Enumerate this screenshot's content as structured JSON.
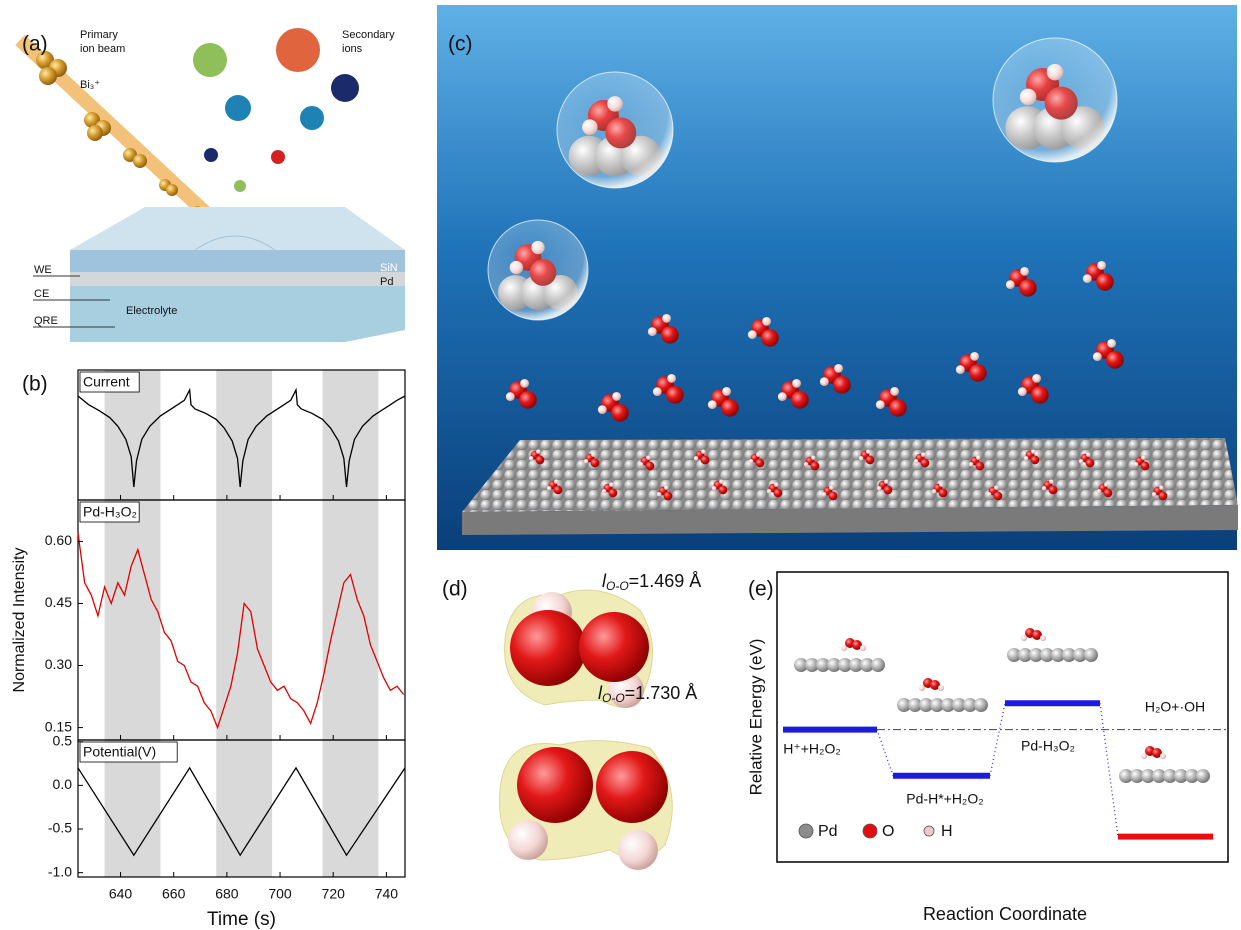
{
  "figure": {
    "a": {
      "label": "(a)",
      "primary": [
        "Primary",
        "ion beam"
      ],
      "bi": "Bi₃⁺",
      "secondary": [
        "Secondary",
        "ions"
      ],
      "we": "WE",
      "ce": "CE",
      "qre": "QRE",
      "electrolyte": "Electrolyte",
      "sin": "SiN",
      "pd": "Pd"
    },
    "b": {
      "label": "(b)"
    },
    "c": {
      "label": "(c)"
    },
    "d": {
      "label": "(d)",
      "structures": [
        {
          "symbol": "l",
          "subscript": "O-O",
          "length": "=1.469 Å"
        },
        {
          "symbol": "l",
          "subscript": "O-O",
          "length": "=1.730 Å"
        }
      ]
    },
    "e": {
      "label": "(e)"
    }
  },
  "chart_data": [
    {
      "type": "line",
      "xlabel": "Time (s)",
      "ylabel": "Normalized Intensity",
      "xlim": [
        624,
        747
      ],
      "xticks": [
        640,
        660,
        680,
        700,
        720,
        740
      ],
      "highlight_spans": [
        [
          634,
          655
        ],
        [
          676,
          697
        ],
        [
          716,
          737
        ]
      ],
      "highlight_color": "#d9d9d9",
      "subplots": [
        {
          "label": "Current",
          "color": "#000000",
          "ylim": [
            -1.15,
            0.35
          ],
          "x": [
            624,
            628,
            632,
            636,
            639,
            642,
            644,
            645,
            646,
            648,
            651,
            655,
            660,
            664,
            666,
            666.5,
            668,
            672,
            676,
            679,
            682,
            684,
            685,
            686,
            688,
            691,
            695,
            700,
            704,
            706,
            706.5,
            708,
            712,
            716,
            719,
            722,
            724,
            725,
            726,
            728,
            731,
            735,
            740,
            744,
            747
          ],
          "values": [
            0.05,
            -0.05,
            -0.12,
            -0.2,
            -0.3,
            -0.45,
            -0.65,
            -1.0,
            -0.7,
            -0.45,
            -0.3,
            -0.18,
            -0.08,
            0.0,
            0.12,
            -0.05,
            -0.1,
            -0.15,
            -0.22,
            -0.32,
            -0.47,
            -0.67,
            -1.0,
            -0.7,
            -0.45,
            -0.3,
            -0.18,
            -0.08,
            0.0,
            0.12,
            -0.05,
            -0.1,
            -0.15,
            -0.22,
            -0.32,
            -0.47,
            -0.67,
            -1.0,
            -0.7,
            -0.45,
            -0.3,
            -0.18,
            -0.08,
            0.0,
            0.05
          ]
        },
        {
          "label": "Pd-H₃O₂",
          "color": "#e00000",
          "ylim": [
            0.12,
            0.7
          ],
          "yticks": [
            0.15,
            {
              "value": 0.3,
              "label": "0.30"
            },
            0.45,
            {
              "value": 0.6,
              "label": "0.60"
            }
          ],
          "x": [
            624,
            626.5,
            629,
            631.5,
            634,
            636.5,
            639,
            641.5,
            644,
            646.5,
            649,
            651.5,
            654,
            656.5,
            659,
            661.5,
            664,
            666.5,
            669,
            671.5,
            674,
            676.5,
            679,
            681.5,
            684,
            686.5,
            689,
            691.5,
            694,
            696.5,
            699,
            701.5,
            704,
            706.5,
            709,
            711.5,
            714,
            716.5,
            719,
            721.5,
            724,
            726.5,
            729,
            731.5,
            734,
            736.5,
            739,
            741.5,
            744,
            746.5
          ],
          "values": [
            0.62,
            0.5,
            0.47,
            0.42,
            0.49,
            0.45,
            0.5,
            0.47,
            0.54,
            0.58,
            0.52,
            0.46,
            0.43,
            0.38,
            0.36,
            0.31,
            0.3,
            0.26,
            0.25,
            0.21,
            0.19,
            0.15,
            0.2,
            0.25,
            0.33,
            0.45,
            0.43,
            0.34,
            0.3,
            0.26,
            0.24,
            0.25,
            0.22,
            0.21,
            0.19,
            0.16,
            0.21,
            0.28,
            0.36,
            0.43,
            0.5,
            0.52,
            0.46,
            0.42,
            0.35,
            0.31,
            0.27,
            0.24,
            0.25,
            0.23
          ]
        },
        {
          "label": "Potential(V)",
          "color": "#000000",
          "ylim": [
            -1.05,
            0.52
          ],
          "yticks": [
            {
              "value": -1,
              "label": "-1.0"
            },
            -0.5,
            {
              "value": 0,
              "label": "0.0"
            },
            0.5
          ],
          "x": [
            624,
            645,
            666,
            685,
            706,
            725,
            747
          ],
          "values": [
            0.2,
            -0.8,
            0.2,
            -0.8,
            0.2,
            -0.8,
            0.2
          ]
        }
      ]
    },
    {
      "type": "energy-levels",
      "ylabel": "Relative Energy (eV)",
      "xlabel": "Reaction Coordinate",
      "ylim": [
        -1.15,
        1.37
      ],
      "categories": [
        "H⁺+H₂O₂",
        "Pd-H*+H₂O₂",
        "Pd-H₃O₂",
        "H₂O+·OH"
      ],
      "values": [
        0,
        -0.4,
        0.23,
        -0.93
      ],
      "colors": [
        "#1c1ce0",
        "#1c1ce0",
        "#1c1ce0",
        "#e81010"
      ],
      "legend": [
        "Pd",
        "O",
        "H"
      ],
      "legend_colors": [
        "#8c8c8c",
        "#e01010",
        "#f0c8c8"
      ]
    }
  ]
}
